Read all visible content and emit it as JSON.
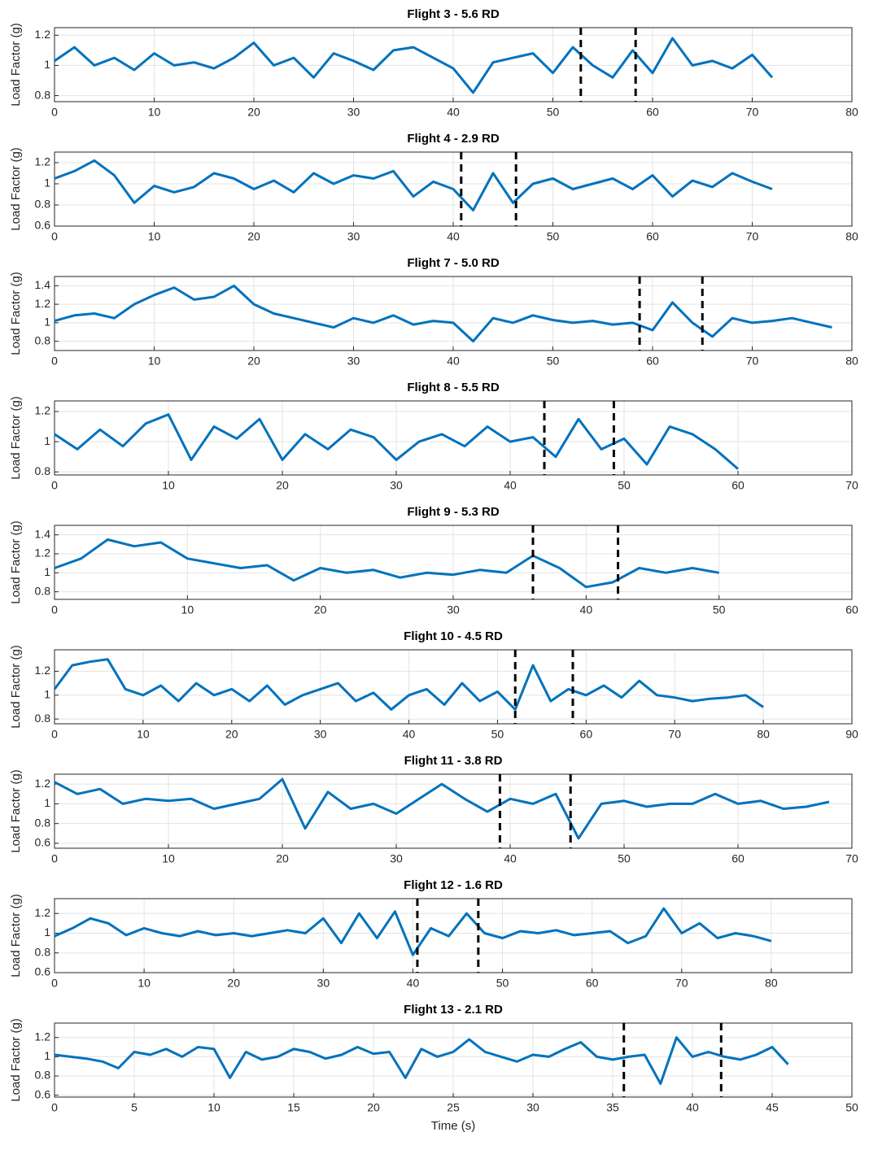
{
  "chart_data": [
    {
      "type": "line",
      "title": "Flight 3 - 5.6 RD",
      "ylabel": "Load Factor (g)",
      "color": "#0072bd",
      "grid": true,
      "xlim": [
        0,
        80
      ],
      "xticks": [
        0,
        10,
        20,
        30,
        40,
        50,
        60,
        70,
        80
      ],
      "ylim": [
        0.76,
        1.25
      ],
      "yticks": [
        0.8,
        1,
        1.2
      ],
      "vlines": [
        52.8,
        58.3
      ],
      "x": [
        0,
        2,
        4,
        6,
        8,
        10,
        12,
        14,
        16,
        18,
        20,
        22,
        24,
        26,
        28,
        30,
        32,
        34,
        36,
        38,
        40,
        42,
        44,
        46,
        48,
        50,
        52,
        54,
        56,
        58,
        60,
        62,
        64,
        66,
        68,
        70,
        72
      ],
      "values": [
        1.03,
        1.12,
        1.0,
        1.05,
        0.97,
        1.08,
        1.0,
        1.02,
        0.98,
        1.05,
        1.15,
        1.0,
        1.05,
        0.92,
        1.08,
        1.03,
        0.97,
        1.1,
        1.12,
        1.05,
        0.98,
        0.82,
        1.02,
        1.05,
        1.08,
        0.95,
        1.12,
        1.0,
        0.92,
        1.1,
        0.95,
        1.18,
        1.0,
        1.03,
        0.98,
        1.07,
        0.92
      ]
    },
    {
      "type": "line",
      "title": "Flight 4 - 2.9 RD",
      "ylabel": "Load Factor (g)",
      "color": "#0072bd",
      "grid": true,
      "xlim": [
        0,
        80
      ],
      "xticks": [
        0,
        10,
        20,
        30,
        40,
        50,
        60,
        70,
        80
      ],
      "ylim": [
        0.6,
        1.3
      ],
      "yticks": [
        0.6,
        0.8,
        1,
        1.2
      ],
      "vlines": [
        40.8,
        46.3
      ],
      "x": [
        0,
        2,
        4,
        6,
        8,
        10,
        12,
        14,
        16,
        18,
        20,
        22,
        24,
        26,
        28,
        30,
        32,
        34,
        36,
        38,
        40,
        42,
        44,
        46,
        48,
        50,
        52,
        54,
        56,
        58,
        60,
        62,
        64,
        66,
        68,
        70,
        72
      ],
      "values": [
        1.05,
        1.12,
        1.22,
        1.08,
        0.82,
        0.98,
        0.92,
        0.97,
        1.1,
        1.05,
        0.95,
        1.03,
        0.92,
        1.1,
        1.0,
        1.08,
        1.05,
        1.12,
        0.88,
        1.02,
        0.95,
        0.75,
        1.1,
        0.82,
        1.0,
        1.05,
        0.95,
        1.0,
        1.05,
        0.95,
        1.08,
        0.88,
        1.03,
        0.97,
        1.1,
        1.02,
        0.95
      ]
    },
    {
      "type": "line",
      "title": "Flight 7 - 5.0 RD",
      "ylabel": "Load Factor (g)",
      "color": "#0072bd",
      "grid": true,
      "xlim": [
        0,
        80
      ],
      "xticks": [
        0,
        10,
        20,
        30,
        40,
        50,
        60,
        70,
        80
      ],
      "ylim": [
        0.7,
        1.5
      ],
      "yticks": [
        0.8,
        1,
        1.2,
        1.4
      ],
      "vlines": [
        58.7,
        65.0
      ],
      "x": [
        0,
        2,
        4,
        6,
        8,
        10,
        12,
        14,
        16,
        18,
        20,
        22,
        24,
        26,
        28,
        30,
        32,
        34,
        36,
        38,
        40,
        42,
        44,
        46,
        48,
        50,
        52,
        54,
        56,
        58,
        60,
        62,
        64,
        66,
        68,
        70,
        72,
        74,
        76,
        78
      ],
      "values": [
        1.02,
        1.08,
        1.1,
        1.05,
        1.2,
        1.3,
        1.38,
        1.25,
        1.28,
        1.4,
        1.2,
        1.1,
        1.05,
        1.0,
        0.95,
        1.05,
        1.0,
        1.08,
        0.98,
        1.02,
        1.0,
        0.8,
        1.05,
        1.0,
        1.08,
        1.03,
        1.0,
        1.02,
        0.98,
        1.0,
        0.92,
        1.22,
        1.0,
        0.85,
        1.05,
        1.0,
        1.02,
        1.05,
        1.0,
        0.95
      ]
    },
    {
      "type": "line",
      "title": "Flight 8 - 5.5 RD",
      "ylabel": "Load Factor (g)",
      "color": "#0072bd",
      "grid": true,
      "xlim": [
        0,
        70
      ],
      "xticks": [
        0,
        10,
        20,
        30,
        40,
        50,
        60,
        70
      ],
      "ylim": [
        0.78,
        1.27
      ],
      "yticks": [
        0.8,
        1,
        1.2
      ],
      "vlines": [
        43,
        49.1
      ],
      "x": [
        0,
        2,
        4,
        6,
        8,
        10,
        12,
        14,
        16,
        18,
        20,
        22,
        24,
        26,
        28,
        30,
        32,
        34,
        36,
        38,
        40,
        42,
        44,
        46,
        48,
        50,
        52,
        54,
        56,
        58,
        60
      ],
      "values": [
        1.05,
        0.95,
        1.08,
        0.97,
        1.12,
        1.18,
        0.88,
        1.1,
        1.02,
        1.15,
        0.88,
        1.05,
        0.95,
        1.08,
        1.03,
        0.88,
        1.0,
        1.05,
        0.97,
        1.1,
        1.0,
        1.03,
        0.9,
        1.15,
        0.95,
        1.02,
        0.85,
        1.1,
        1.05,
        0.95,
        0.82
      ]
    },
    {
      "type": "line",
      "title": "Flight 9 - 5.3 RD",
      "ylabel": "Load Factor (g)",
      "color": "#0072bd",
      "grid": true,
      "xlim": [
        0,
        60
      ],
      "xticks": [
        0,
        10,
        20,
        30,
        40,
        50,
        60
      ],
      "ylim": [
        0.72,
        1.5
      ],
      "yticks": [
        0.8,
        1,
        1.2,
        1.4
      ],
      "vlines": [
        36,
        42.4
      ],
      "x": [
        0,
        2,
        4,
        6,
        8,
        10,
        12,
        14,
        16,
        18,
        20,
        22,
        24,
        26,
        28,
        30,
        32,
        34,
        36,
        38,
        40,
        42,
        44,
        46,
        48,
        50
      ],
      "values": [
        1.05,
        1.15,
        1.35,
        1.28,
        1.32,
        1.15,
        1.1,
        1.05,
        1.08,
        0.92,
        1.05,
        1.0,
        1.03,
        0.95,
        1.0,
        0.98,
        1.03,
        1.0,
        1.18,
        1.05,
        0.85,
        0.9,
        1.05,
        1.0,
        1.05,
        1.0
      ]
    },
    {
      "type": "line",
      "title": "Flight 10 - 4.5 RD",
      "ylabel": "Load Factor (g)",
      "color": "#0072bd",
      "grid": true,
      "xlim": [
        0,
        90
      ],
      "xticks": [
        0,
        10,
        20,
        30,
        40,
        50,
        60,
        70,
        80,
        90
      ],
      "ylim": [
        0.76,
        1.38
      ],
      "yticks": [
        0.8,
        1,
        1.2
      ],
      "vlines": [
        52,
        58.5
      ],
      "x": [
        0,
        2,
        4,
        6,
        8,
        10,
        12,
        14,
        16,
        18,
        20,
        22,
        24,
        26,
        28,
        30,
        32,
        34,
        36,
        38,
        40,
        42,
        44,
        46,
        48,
        50,
        52,
        54,
        56,
        58,
        60,
        62,
        64,
        66,
        68,
        70,
        72,
        74,
        76,
        78,
        80
      ],
      "values": [
        1.05,
        1.25,
        1.28,
        1.3,
        1.05,
        1.0,
        1.08,
        0.95,
        1.1,
        1.0,
        1.05,
        0.95,
        1.08,
        0.92,
        1.0,
        1.05,
        1.1,
        0.95,
        1.02,
        0.88,
        1.0,
        1.05,
        0.92,
        1.1,
        0.95,
        1.03,
        0.88,
        1.25,
        0.95,
        1.05,
        1.0,
        1.08,
        0.98,
        1.12,
        1.0,
        0.98,
        0.95,
        0.97,
        0.98,
        1.0,
        0.9
      ]
    },
    {
      "type": "line",
      "title": "Flight 11 - 3.8 RD",
      "ylabel": "Load Factor (g)",
      "color": "#0072bd",
      "grid": true,
      "xlim": [
        0,
        70
      ],
      "xticks": [
        0,
        10,
        20,
        30,
        40,
        50,
        60,
        70
      ],
      "ylim": [
        0.55,
        1.3
      ],
      "yticks": [
        0.6,
        0.8,
        1,
        1.2
      ],
      "vlines": [
        39.1,
        45.3
      ],
      "x": [
        0,
        2,
        4,
        6,
        8,
        10,
        12,
        14,
        16,
        18,
        20,
        22,
        24,
        26,
        28,
        30,
        32,
        34,
        36,
        38,
        40,
        42,
        44,
        46,
        48,
        50,
        52,
        54,
        56,
        58,
        60,
        62,
        64,
        66,
        68
      ],
      "values": [
        1.22,
        1.1,
        1.15,
        1.0,
        1.05,
        1.03,
        1.05,
        0.95,
        1.0,
        1.05,
        1.25,
        0.75,
        1.12,
        0.95,
        1.0,
        0.9,
        1.05,
        1.2,
        1.05,
        0.92,
        1.05,
        1.0,
        1.1,
        0.65,
        1.0,
        1.03,
        0.97,
        1.0,
        1.0,
        1.1,
        1.0,
        1.03,
        0.95,
        0.97,
        1.02
      ]
    },
    {
      "type": "line",
      "title": "Flight 12 - 1.6 RD",
      "ylabel": "Load Factor (g)",
      "color": "#0072bd",
      "grid": true,
      "xlim": [
        0,
        89
      ],
      "xticks": [
        0,
        10,
        20,
        30,
        40,
        50,
        60,
        70,
        80
      ],
      "ylim": [
        0.6,
        1.35
      ],
      "yticks": [
        0.6,
        0.8,
        1,
        1.2
      ],
      "vlines": [
        40.5,
        47.3
      ],
      "x": [
        0,
        2,
        4,
        6,
        8,
        10,
        12,
        14,
        16,
        18,
        20,
        22,
        24,
        26,
        28,
        30,
        32,
        34,
        36,
        38,
        40,
        42,
        44,
        46,
        48,
        50,
        52,
        54,
        56,
        58,
        60,
        62,
        64,
        66,
        68,
        70,
        72,
        74,
        76,
        78,
        80
      ],
      "values": [
        0.97,
        1.05,
        1.15,
        1.1,
        0.98,
        1.05,
        1.0,
        0.97,
        1.02,
        0.98,
        1.0,
        0.97,
        1.0,
        1.03,
        1.0,
        1.15,
        0.9,
        1.2,
        0.95,
        1.22,
        0.78,
        1.05,
        0.97,
        1.2,
        1.0,
        0.95,
        1.02,
        1.0,
        1.03,
        0.98,
        1.0,
        1.02,
        0.9,
        0.97,
        1.25,
        1.0,
        1.1,
        0.95,
        1.0,
        0.97,
        0.92
      ]
    },
    {
      "type": "line",
      "title": "Flight 13 - 2.1 RD",
      "ylabel": "Load Factor (g)",
      "xlabel": "Time (s)",
      "color": "#0072bd",
      "grid": true,
      "xlim": [
        0,
        50
      ],
      "xticks": [
        0,
        5,
        10,
        15,
        20,
        25,
        30,
        35,
        40,
        45,
        50
      ],
      "ylim": [
        0.58,
        1.35
      ],
      "yticks": [
        0.6,
        0.8,
        1,
        1.2
      ],
      "vlines": [
        35.7,
        41.8
      ],
      "x": [
        0,
        1,
        2,
        3,
        4,
        5,
        6,
        7,
        8,
        9,
        10,
        11,
        12,
        13,
        14,
        15,
        16,
        17,
        18,
        19,
        20,
        21,
        22,
        23,
        24,
        25,
        26,
        27,
        28,
        29,
        30,
        31,
        32,
        33,
        34,
        35,
        36,
        37,
        38,
        39,
        40,
        41,
        42,
        43,
        44,
        45,
        46
      ],
      "values": [
        1.02,
        1.0,
        0.98,
        0.95,
        0.88,
        1.05,
        1.02,
        1.08,
        1.0,
        1.1,
        1.08,
        0.78,
        1.05,
        0.97,
        1.0,
        1.08,
        1.05,
        0.98,
        1.02,
        1.1,
        1.03,
        1.05,
        0.78,
        1.08,
        1.0,
        1.05,
        1.18,
        1.05,
        1.0,
        0.95,
        1.02,
        1.0,
        1.08,
        1.15,
        1.0,
        0.97,
        1.0,
        1.02,
        0.72,
        1.2,
        1.0,
        1.05,
        1.0,
        0.97,
        1.02,
        1.1,
        0.92
      ]
    }
  ]
}
